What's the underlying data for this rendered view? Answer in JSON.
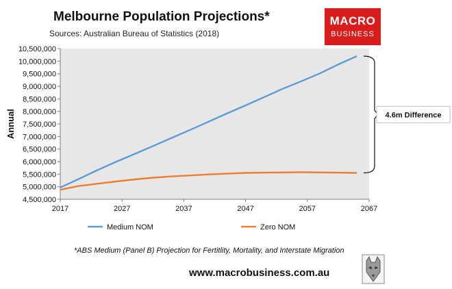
{
  "header": {
    "title": "Melbourne Population Projections*",
    "subtitle": "Sources: Australian Bureau of Statistics (2018)"
  },
  "logo": {
    "line1": "MACRO",
    "line2": "BUSINESS"
  },
  "footer": {
    "note": "*ABS Medium (Panel B) Projection for Fertitlity, Mortality, and Interstate Migration",
    "website": "www.macrobusiness.com.au"
  },
  "colors": {
    "medium": "#5b9bd5",
    "zero": "#ed7d31",
    "plot_bg": "#e7e7e7",
    "logo": "#d91c1c"
  },
  "chart_data": {
    "type": "line",
    "ylabel": "Annual",
    "xlabel": "",
    "xlim": [
      2017,
      2067
    ],
    "ylim": [
      4500000,
      10500000
    ],
    "x_ticks": [
      2017,
      2027,
      2037,
      2047,
      2057,
      2067
    ],
    "y_ticks": [
      4500000,
      5000000,
      5500000,
      6000000,
      6500000,
      7000000,
      7500000,
      8000000,
      8500000,
      9000000,
      9500000,
      10000000,
      10500000
    ],
    "y_tick_labels": [
      "4,500,000",
      "5,000,000",
      "5,500,000",
      "6,000,000",
      "6,500,000",
      "7,000,000",
      "7,500,000",
      "8,000,000",
      "8,500,000",
      "9,000,000",
      "9,500,000",
      "10,000,000",
      "10,500,000"
    ],
    "legend_placement": "bottom",
    "grid": false,
    "annotation": "4.6m Difference",
    "series": [
      {
        "name": "Medium NOM",
        "x": [
          2017,
          2020,
          2023,
          2026,
          2029,
          2032,
          2035,
          2038,
          2041,
          2044,
          2047,
          2050,
          2053,
          2056,
          2059,
          2062,
          2065
        ],
        "values": [
          4970000,
          5310000,
          5660000,
          5990000,
          6300000,
          6620000,
          6940000,
          7260000,
          7590000,
          7920000,
          8240000,
          8570000,
          8900000,
          9200000,
          9510000,
          9870000,
          10200000
        ]
      },
      {
        "name": "Zero NOM",
        "x": [
          2017,
          2020,
          2023,
          2026,
          2029,
          2032,
          2035,
          2038,
          2041,
          2044,
          2047,
          2050,
          2053,
          2056,
          2059,
          2062,
          2065
        ],
        "values": [
          4880000,
          5030000,
          5120000,
          5210000,
          5290000,
          5360000,
          5410000,
          5450000,
          5490000,
          5520000,
          5550000,
          5560000,
          5570000,
          5580000,
          5570000,
          5560000,
          5550000
        ]
      }
    ]
  }
}
